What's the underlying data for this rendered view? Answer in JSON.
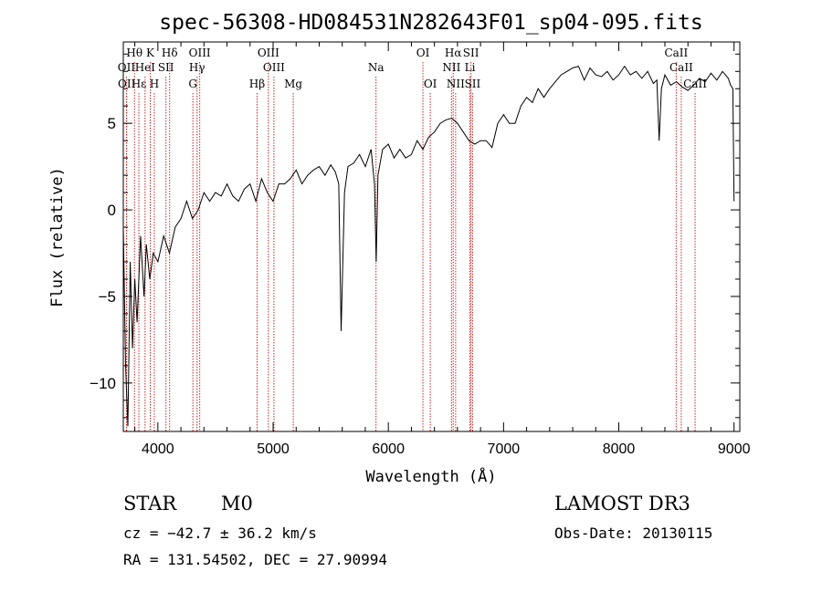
{
  "chart_data": {
    "type": "line",
    "title": "spec-56308-HD084531N282643F01_sp04-095.fits",
    "xlabel": "Wavelength (Å)",
    "ylabel": "Flux (relative)",
    "xlim": [
      3700,
      9050
    ],
    "ylim": [
      -12.8,
      9.7
    ],
    "xticks": [
      4000,
      5000,
      6000,
      7000,
      8000,
      9000
    ],
    "xtick_labels": [
      "4000",
      "5000",
      "6000",
      "7000",
      "8000",
      "9000"
    ],
    "yticks": [
      -10,
      -5,
      0,
      5
    ],
    "ytick_labels": [
      "−10",
      "−5",
      "0",
      "5"
    ],
    "series": [
      {
        "name": "spectrum",
        "x": [
          3700,
          3720,
          3740,
          3760,
          3780,
          3800,
          3820,
          3850,
          3880,
          3900,
          3930,
          3960,
          4000,
          4050,
          4100,
          4150,
          4200,
          4250,
          4300,
          4350,
          4400,
          4450,
          4500,
          4550,
          4600,
          4650,
          4700,
          4750,
          4800,
          4850,
          4900,
          4950,
          5000,
          5050,
          5100,
          5150,
          5200,
          5250,
          5300,
          5350,
          5400,
          5450,
          5500,
          5540,
          5570,
          5590,
          5620,
          5650,
          5700,
          5750,
          5800,
          5850,
          5880,
          5895,
          5910,
          5950,
          6000,
          6050,
          6100,
          6150,
          6200,
          6250,
          6300,
          6350,
          6400,
          6450,
          6500,
          6550,
          6600,
          6650,
          6700,
          6750,
          6800,
          6850,
          6900,
          6950,
          7000,
          7050,
          7100,
          7150,
          7200,
          7250,
          7300,
          7350,
          7400,
          7450,
          7500,
          7550,
          7600,
          7650,
          7700,
          7750,
          7800,
          7850,
          7900,
          7950,
          8000,
          8050,
          8100,
          8150,
          8200,
          8250,
          8300,
          8330,
          8350,
          8370,
          8400,
          8450,
          8500,
          8550,
          8600,
          8650,
          8700,
          8750,
          8800,
          8850,
          8900,
          8950,
          8970,
          8990,
          9000
        ],
        "y": [
          -1,
          -9,
          -12.5,
          -3,
          -8,
          -4,
          -6.5,
          -1.5,
          -5,
          -2,
          -4,
          -2.5,
          -3,
          -1.5,
          -2.5,
          -1,
          -0.5,
          0.5,
          -0.5,
          0,
          1,
          0.5,
          1,
          0.8,
          1.5,
          0.8,
          0.5,
          1.2,
          1.5,
          0.5,
          1.8,
          1,
          0.5,
          1.5,
          1.5,
          1.8,
          2.3,
          1.5,
          2,
          2.3,
          2.5,
          2,
          2.6,
          2.2,
          1.5,
          -7,
          1,
          2.5,
          2.7,
          3.2,
          2.5,
          3.5,
          1.5,
          -3,
          2,
          3.5,
          3.8,
          3,
          3.5,
          3,
          3.2,
          4,
          3.5,
          4.2,
          4.5,
          5,
          5.2,
          5.3,
          5,
          4.5,
          4,
          3.8,
          4,
          4,
          3.6,
          5,
          5.5,
          5,
          5,
          6,
          6.5,
          6.2,
          7,
          6.5,
          7,
          7.4,
          7.8,
          8,
          8.2,
          8.3,
          7.5,
          8.2,
          7.8,
          7.7,
          8,
          7.5,
          7.8,
          8.3,
          7.8,
          8,
          7.6,
          8,
          7.3,
          7.5,
          4,
          7,
          7.8,
          7.2,
          7.4,
          7.1,
          6.9,
          7.2,
          7.6,
          7.4,
          7.9,
          7.5,
          8,
          7.6,
          7.2,
          7,
          0.5
        ]
      }
    ],
    "line_markers": [
      {
        "label": "Hθ",
        "wavelength": 3797,
        "row": 1
      },
      {
        "label": "K",
        "wavelength": 3934,
        "row": 1
      },
      {
        "label": "Hδ",
        "wavelength": 4102,
        "row": 1
      },
      {
        "label": "OIII",
        "wavelength": 4363,
        "row": 1
      },
      {
        "label": "OIII",
        "wavelength": 4959,
        "row": 1
      },
      {
        "label": "OI",
        "wavelength": 6300,
        "row": 1
      },
      {
        "label": "Hα",
        "wavelength": 6563,
        "row": 1
      },
      {
        "label": "SII",
        "wavelength": 6717,
        "row": 1
      },
      {
        "label": "CaII",
        "wavelength": 8498,
        "row": 1
      },
      {
        "label": "OII",
        "wavelength": 3727,
        "row": 2
      },
      {
        "label": "HeI",
        "wavelength": 3889,
        "row": 2
      },
      {
        "label": "SII",
        "wavelength": 4070,
        "row": 2
      },
      {
        "label": "Hγ",
        "wavelength": 4340,
        "row": 2
      },
      {
        "label": "OIII",
        "wavelength": 5007,
        "row": 2
      },
      {
        "label": "Na",
        "wavelength": 5893,
        "row": 2
      },
      {
        "label": "NII",
        "wavelength": 6548,
        "row": 2
      },
      {
        "label": "Li",
        "wavelength": 6708,
        "row": 2
      },
      {
        "label": "CaII",
        "wavelength": 8542,
        "row": 2
      },
      {
        "label": "OII",
        "wavelength": 3729,
        "row": 3
      },
      {
        "label": "Hε",
        "wavelength": 3835,
        "row": 3
      },
      {
        "label": "H",
        "wavelength": 3969,
        "row": 3
      },
      {
        "label": "G",
        "wavelength": 4304,
        "row": 3
      },
      {
        "label": "Hβ",
        "wavelength": 4861,
        "row": 3
      },
      {
        "label": "Mg",
        "wavelength": 5175,
        "row": 3
      },
      {
        "label": "OI",
        "wavelength": 6364,
        "row": 3
      },
      {
        "label": "NII",
        "wavelength": 6584,
        "row": 3
      },
      {
        "label": "SII",
        "wavelength": 6731,
        "row": 3
      },
      {
        "label": "CaII",
        "wavelength": 8662,
        "row": 3
      }
    ]
  },
  "info": {
    "class": "STAR",
    "subclass": "M0",
    "survey": "LAMOST DR3",
    "redshift": "cz = −42.7 ± 36.2 km/s",
    "obs_date": "Obs-Date: 20130115",
    "coords": "RA = 131.54502, DEC =  27.90994"
  },
  "colors": {
    "spectrum": "#000000",
    "marker_line": "#cc2222",
    "background": "#ffffff"
  }
}
